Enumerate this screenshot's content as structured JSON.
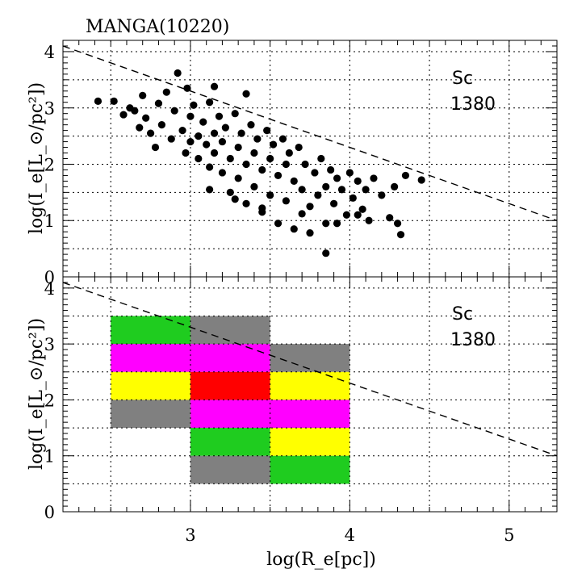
{
  "chart_data": {
    "type": "scatter",
    "title": "MANGA(10220)",
    "xlabel": "log(R_e[pc])",
    "ylabel": "log(I_e[L_⊙/pc²])",
    "xlim": [
      2.2,
      5.3
    ],
    "ylim": [
      0,
      4.2
    ],
    "x_ticks": [
      "3",
      "4",
      "5"
    ],
    "y_ticks": [
      "0",
      "1",
      "2",
      "3",
      "4"
    ],
    "grid": true,
    "reference_line": {
      "style": "dashed",
      "x": [
        2.2,
        5.3
      ],
      "y": [
        4.1,
        1.0
      ]
    },
    "panels": [
      {
        "type": "scatter",
        "annotation": [
          "Sc",
          "1380"
        ],
        "points": [
          [
            2.52,
            3.12
          ],
          [
            2.62,
            3.0
          ],
          [
            2.65,
            2.95
          ],
          [
            2.7,
            3.22
          ],
          [
            2.72,
            2.82
          ],
          [
            2.75,
            2.55
          ],
          [
            2.78,
            2.3
          ],
          [
            2.8,
            3.08
          ],
          [
            2.82,
            2.7
          ],
          [
            2.85,
            3.28
          ],
          [
            2.88,
            2.45
          ],
          [
            2.9,
            2.95
          ],
          [
            2.92,
            3.62
          ],
          [
            2.95,
            2.6
          ],
          [
            2.97,
            2.2
          ],
          [
            3.0,
            2.85
          ],
          [
            3.0,
            2.4
          ],
          [
            3.02,
            3.05
          ],
          [
            3.05,
            2.5
          ],
          [
            3.05,
            2.1
          ],
          [
            3.08,
            2.75
          ],
          [
            3.1,
            2.35
          ],
          [
            3.12,
            3.1
          ],
          [
            3.12,
            1.95
          ],
          [
            3.15,
            2.55
          ],
          [
            3.15,
            2.2
          ],
          [
            3.18,
            2.85
          ],
          [
            3.2,
            2.4
          ],
          [
            3.2,
            1.85
          ],
          [
            3.22,
            2.65
          ],
          [
            3.25,
            2.1
          ],
          [
            3.25,
            1.5
          ],
          [
            3.28,
            2.9
          ],
          [
            3.3,
            2.3
          ],
          [
            3.3,
            1.75
          ],
          [
            3.32,
            2.55
          ],
          [
            3.35,
            2.0
          ],
          [
            3.35,
            1.3
          ],
          [
            3.38,
            2.7
          ],
          [
            3.4,
            2.2
          ],
          [
            3.4,
            1.6
          ],
          [
            3.42,
            2.45
          ],
          [
            3.45,
            1.9
          ],
          [
            3.45,
            1.15
          ],
          [
            3.48,
            2.6
          ],
          [
            3.5,
            2.1
          ],
          [
            3.5,
            1.45
          ],
          [
            3.52,
            2.35
          ],
          [
            3.55,
            1.8
          ],
          [
            3.55,
            0.95
          ],
          [
            3.58,
            2.45
          ],
          [
            3.6,
            2.0
          ],
          [
            3.6,
            1.35
          ],
          [
            3.62,
            2.2
          ],
          [
            3.65,
            1.7
          ],
          [
            3.65,
            0.85
          ],
          [
            3.68,
            2.3
          ],
          [
            3.7,
            1.55
          ],
          [
            3.72,
            2.0
          ],
          [
            3.75,
            1.25
          ],
          [
            3.75,
            0.78
          ],
          [
            3.78,
            1.85
          ],
          [
            3.8,
            1.45
          ],
          [
            3.82,
            2.1
          ],
          [
            3.85,
            1.6
          ],
          [
            3.85,
            0.95
          ],
          [
            3.88,
            1.9
          ],
          [
            3.9,
            1.3
          ],
          [
            3.92,
            1.75
          ],
          [
            3.95,
            1.55
          ],
          [
            3.98,
            1.1
          ],
          [
            4.0,
            1.85
          ],
          [
            4.02,
            1.4
          ],
          [
            4.05,
            1.7
          ],
          [
            4.08,
            1.2
          ],
          [
            4.1,
            1.55
          ],
          [
            4.12,
            1.0
          ],
          [
            4.15,
            1.75
          ],
          [
            4.2,
            1.45
          ],
          [
            4.25,
            1.05
          ],
          [
            4.28,
            1.6
          ],
          [
            4.3,
            0.95
          ],
          [
            4.32,
            0.75
          ],
          [
            4.35,
            1.8
          ],
          [
            4.45,
            1.72
          ],
          [
            3.85,
            0.42
          ],
          [
            2.42,
            3.12
          ],
          [
            2.58,
            2.88
          ],
          [
            2.68,
            2.65
          ],
          [
            2.98,
            3.35
          ],
          [
            3.15,
            3.38
          ],
          [
            3.35,
            3.25
          ],
          [
            3.12,
            1.55
          ],
          [
            3.28,
            1.38
          ],
          [
            3.45,
            1.22
          ],
          [
            3.7,
            1.12
          ],
          [
            3.92,
            0.95
          ],
          [
            4.05,
            1.1
          ]
        ]
      },
      {
        "type": "heatmap",
        "annotation": [
          "Sc",
          "1380"
        ],
        "cells": [
          {
            "x0": 2.5,
            "x1": 3.0,
            "y0": 3.0,
            "y1": 3.5,
            "color": "#1fcc1f"
          },
          {
            "x0": 3.0,
            "x1": 3.5,
            "y0": 3.0,
            "y1": 3.5,
            "color": "#808080"
          },
          {
            "x0": 2.5,
            "x1": 3.5,
            "y0": 2.5,
            "y1": 3.0,
            "color": "#ff00ff"
          },
          {
            "x0": 3.5,
            "x1": 4.0,
            "y0": 2.5,
            "y1": 3.0,
            "color": "#808080"
          },
          {
            "x0": 2.5,
            "x1": 3.0,
            "y0": 2.0,
            "y1": 2.5,
            "color": "#ffff00"
          },
          {
            "x0": 3.0,
            "x1": 3.5,
            "y0": 2.0,
            "y1": 2.5,
            "color": "#ff0000"
          },
          {
            "x0": 3.5,
            "x1": 4.0,
            "y0": 2.0,
            "y1": 2.5,
            "color": "#ffff00"
          },
          {
            "x0": 2.5,
            "x1": 3.0,
            "y0": 1.5,
            "y1": 2.0,
            "color": "#808080"
          },
          {
            "x0": 3.0,
            "x1": 4.0,
            "y0": 1.5,
            "y1": 2.0,
            "color": "#ff00ff"
          },
          {
            "x0": 3.0,
            "x1": 3.5,
            "y0": 1.0,
            "y1": 1.5,
            "color": "#1fcc1f"
          },
          {
            "x0": 3.5,
            "x1": 4.0,
            "y0": 1.0,
            "y1": 1.5,
            "color": "#ffff00"
          },
          {
            "x0": 3.0,
            "x1": 3.5,
            "y0": 0.5,
            "y1": 1.0,
            "color": "#808080"
          },
          {
            "x0": 3.5,
            "x1": 4.0,
            "y0": 0.5,
            "y1": 1.0,
            "color": "#1fcc1f"
          }
        ]
      }
    ]
  }
}
